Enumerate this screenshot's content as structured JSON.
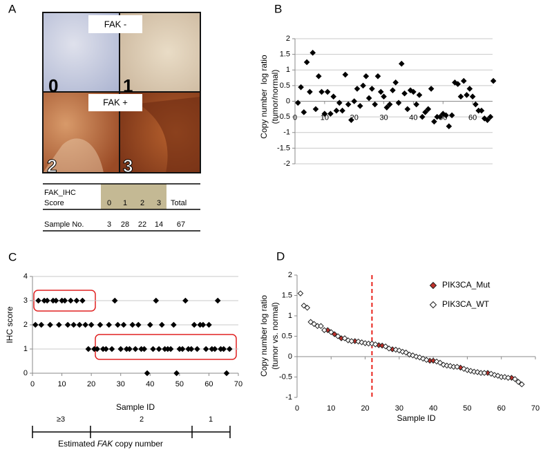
{
  "panel_labels": [
    "A",
    "B",
    "C",
    "D"
  ],
  "ihc": {
    "status_labels": [
      "FAK -",
      "FAK +"
    ],
    "image_scores": [
      "0",
      "1",
      "2",
      "3"
    ],
    "table": {
      "header_lines": [
        "FAK_IHC",
        "Score"
      ],
      "scores": [
        0,
        1,
        2,
        3
      ],
      "total_header": "Total",
      "row_label": "Sample No.",
      "counts": [
        3,
        28,
        22,
        14
      ],
      "total": 67
    }
  },
  "chart_data": [
    {
      "type": "scatter",
      "ylabel": [
        "Copy number  log ratio",
        "(tumor/normal)"
      ],
      "x": [
        1,
        2,
        3,
        4,
        5,
        6,
        7,
        8,
        9,
        10,
        11,
        12,
        13,
        14,
        15,
        16,
        17,
        18,
        19,
        20,
        21,
        22,
        23,
        24,
        25,
        26,
        27,
        28,
        29,
        30,
        31,
        32,
        33,
        34,
        35,
        36,
        37,
        38,
        39,
        40,
        41,
        42,
        43,
        44,
        45,
        46,
        47,
        48,
        49,
        50,
        51,
        52,
        53,
        54,
        55,
        56,
        57,
        58,
        59,
        60,
        61,
        62,
        63,
        64,
        65,
        66,
        67
      ],
      "values": [
        -0.05,
        0.45,
        -0.35,
        1.25,
        0.3,
        1.55,
        -0.25,
        0.8,
        0.3,
        -0.4,
        0.3,
        -0.4,
        0.15,
        -0.3,
        -0.05,
        -0.3,
        0.85,
        -0.1,
        -0.6,
        0,
        0.4,
        -0.15,
        0.5,
        0.8,
        0.1,
        0.4,
        -0.1,
        0.8,
        0.3,
        0.15,
        -0.2,
        -0.1,
        0.35,
        0.6,
        -0.05,
        1.2,
        0.25,
        -0.25,
        0.35,
        0.3,
        -0.1,
        0.2,
        -0.5,
        -0.35,
        -0.25,
        0.4,
        -0.65,
        -0.5,
        -0.5,
        -0.4,
        -0.45,
        -0.8,
        -0.45,
        0.6,
        0.55,
        0.15,
        0.65,
        0.2,
        0.4,
        0.15,
        -0.1,
        -0.3,
        -0.3,
        -0.55,
        -0.6,
        -0.5,
        0.65
      ],
      "color": "#000000",
      "xlim": [
        0,
        70
      ],
      "xticks": [
        0,
        10,
        20,
        30,
        40,
        50,
        60
      ],
      "ylim": [
        -2,
        2
      ],
      "yticks": [
        -2,
        -1.5,
        -1,
        -0.5,
        0,
        0.5,
        1,
        1.5,
        2
      ],
      "grid": true
    },
    {
      "type": "scatter",
      "xlabel": "Sample ID",
      "ylabel": [
        "IHC score"
      ],
      "x": [
        1,
        2,
        3,
        4,
        5,
        6,
        7,
        8,
        9,
        10,
        11,
        12,
        13,
        14,
        15,
        16,
        17,
        18,
        19,
        20,
        21,
        22,
        23,
        24,
        25,
        26,
        27,
        28,
        29,
        30,
        31,
        32,
        33,
        34,
        35,
        36,
        37,
        38,
        39,
        40,
        41,
        42,
        43,
        44,
        45,
        46,
        47,
        48,
        49,
        50,
        51,
        52,
        53,
        54,
        55,
        56,
        57,
        58,
        59,
        60,
        61,
        62,
        63,
        64,
        65,
        66,
        67
      ],
      "values": [
        2,
        3,
        2,
        3,
        3,
        2,
        3,
        3,
        2,
        3,
        3,
        2,
        3,
        2,
        3,
        2,
        3,
        2,
        1,
        2,
        1,
        1,
        2,
        1,
        1,
        2,
        1,
        3,
        2,
        1,
        2,
        1,
        1,
        2,
        1,
        2,
        1,
        1,
        0,
        2,
        1,
        3,
        1,
        2,
        1,
        1,
        1,
        2,
        0,
        1,
        1,
        3,
        1,
        1,
        2,
        1,
        2,
        2,
        1,
        2,
        1,
        1,
        3,
        1,
        1,
        0,
        1
      ],
      "color": "#000000",
      "xlim": [
        0,
        70
      ],
      "xticks": [
        0,
        10,
        20,
        30,
        40,
        50,
        60,
        70
      ],
      "ylim": [
        0,
        4
      ],
      "yticks": [
        0,
        1,
        2,
        3,
        4
      ],
      "grid": true,
      "copy_number_scale": {
        "groups": [
          "≥3",
          "2",
          "1"
        ],
        "label": [
          "Estimated ",
          "FAK",
          " copy number"
        ]
      }
    },
    {
      "type": "scatter",
      "xlabel": "Sample ID",
      "ylabel": [
        "Copy number log ratio",
        "(tumor vs. normal)"
      ],
      "series": [
        {
          "name": "PIK3CA_Mut",
          "color": "#c0302a",
          "x": [
            9,
            11,
            13,
            17,
            24,
            25,
            28,
            39,
            40,
            48,
            56,
            63
          ],
          "values": [
            0.65,
            0.55,
            0.45,
            0.38,
            0.28,
            0.27,
            0.18,
            -0.1,
            -0.1,
            -0.27,
            -0.4,
            -0.52
          ]
        },
        {
          "name": "PIK3CA_WT",
          "color": "#ffffff",
          "x": [
            1,
            2,
            3,
            4,
            5,
            6,
            7,
            8,
            10,
            12,
            14,
            15,
            16,
            18,
            19,
            20,
            21,
            22,
            23,
            26,
            27,
            29,
            30,
            31,
            32,
            33,
            34,
            35,
            36,
            37,
            38,
            41,
            42,
            43,
            44,
            45,
            46,
            47,
            49,
            50,
            51,
            52,
            53,
            54,
            55,
            57,
            58,
            59,
            60,
            61,
            62,
            64,
            65,
            66
          ],
          "values": [
            1.55,
            1.25,
            1.2,
            0.85,
            0.8,
            0.75,
            0.75,
            0.65,
            0.6,
            0.5,
            0.45,
            0.4,
            0.38,
            0.37,
            0.35,
            0.33,
            0.32,
            0.32,
            0.3,
            0.25,
            0.2,
            0.17,
            0.15,
            0.12,
            0.1,
            0.05,
            0.03,
            0,
            -0.02,
            -0.05,
            -0.08,
            -0.12,
            -0.15,
            -0.2,
            -0.22,
            -0.23,
            -0.25,
            -0.25,
            -0.3,
            -0.33,
            -0.35,
            -0.37,
            -0.38,
            -0.4,
            -0.4,
            -0.42,
            -0.45,
            -0.47,
            -0.5,
            -0.5,
            -0.52,
            -0.55,
            -0.62,
            -0.68
          ]
        }
      ],
      "xlim": [
        0,
        70
      ],
      "xticks": [
        0,
        10,
        20,
        30,
        40,
        50,
        60,
        70
      ],
      "ylim": [
        -1,
        2
      ],
      "yticks": [
        -1,
        -0.5,
        0,
        0.5,
        1,
        1.5,
        2
      ],
      "grid": false,
      "vline": 22,
      "vline_color": "#e8221b",
      "legend": "upper right"
    }
  ]
}
